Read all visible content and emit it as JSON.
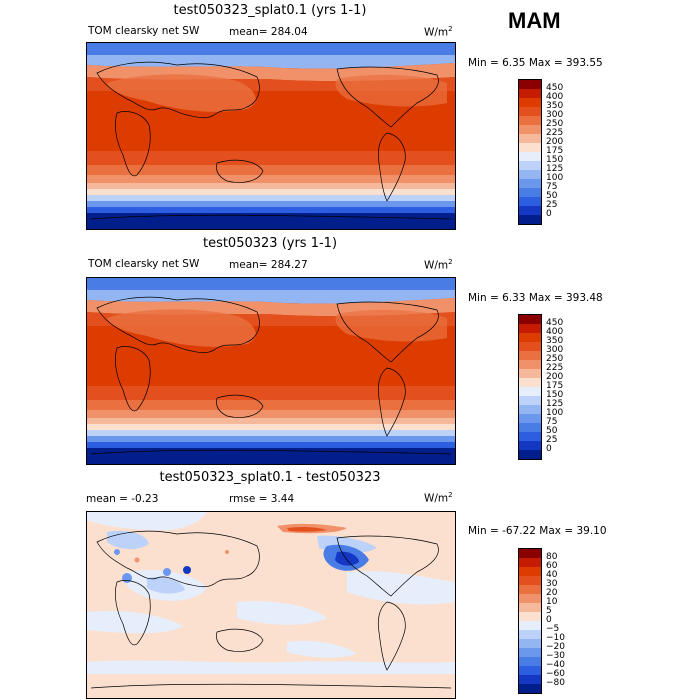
{
  "season": "MAM",
  "panels": [
    {
      "title": "test050323_splat0.1 (yrs 1-1)",
      "variable": "TOM clearsky net SW",
      "mean_text": "mean= 284.04",
      "units": "W/m",
      "units_sup": "2",
      "minmax": "Min =    6.35 Max = 393.55"
    },
    {
      "title": "test050323 (yrs 1-1)",
      "variable": "TOM clearsky net SW",
      "mean_text": "mean= 284.27",
      "units": "W/m",
      "units_sup": "2",
      "minmax": "Min =    6.33 Max = 393.48"
    },
    {
      "title": "test050323_splat0.1 - test050323",
      "mean_text": "mean =   -0.23",
      "rmse_text": "rmse =    3.44",
      "units": "W/m",
      "units_sup": "2",
      "minmax": "Min = -67.22 Max =   39.10"
    }
  ],
  "colorbars": {
    "abs": {
      "labels": [
        "450",
        "400",
        "350",
        "300",
        "250",
        "225",
        "200",
        "175",
        "150",
        "125",
        "100",
        "75",
        "50",
        "25",
        "0"
      ],
      "colors": [
        "#8b0000",
        "#c51b00",
        "#dd3c00",
        "#e3501e",
        "#ea7040",
        "#f0916a",
        "#f6b89a",
        "#fbe0d0",
        "#e6eefc",
        "#bcd2f8",
        "#93b6f2",
        "#6b98ec",
        "#4a7ce6",
        "#2e5ee0",
        "#1538c4",
        "#021e8c"
      ]
    },
    "diff": {
      "labels": [
        "80",
        "60",
        "40",
        "30",
        "20",
        "10",
        "5",
        "0",
        "−5",
        "−10",
        "−20",
        "−30",
        "−40",
        "−60",
        "−80"
      ],
      "colors": [
        "#8b0000",
        "#c51b00",
        "#dd3c00",
        "#e3501e",
        "#ea7040",
        "#f0916a",
        "#f6b89a",
        "#fbe0d0",
        "#e6eefc",
        "#bcd2f8",
        "#93b6f2",
        "#6b98ec",
        "#4a7ce6",
        "#2e5ee0",
        "#1538c4",
        "#021e8c"
      ]
    }
  }
}
